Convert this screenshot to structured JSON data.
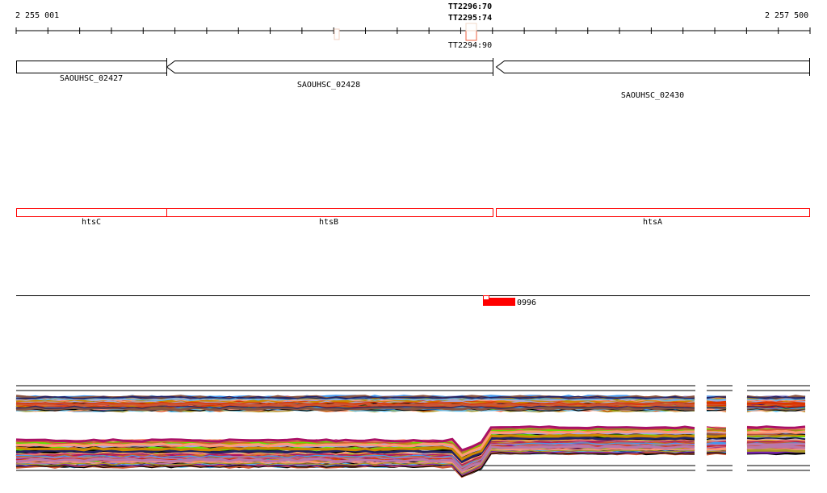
{
  "ruler": {
    "start_label": "2 255 001",
    "end_label": "2 257 500",
    "tick_count": 25
  },
  "markers": [
    {
      "label": "TT2295:74",
      "overlap_label": "TT2296:70",
      "color": "#f0d0c0"
    },
    {
      "label": "TT2294:90",
      "color": "#f06040"
    }
  ],
  "genes": [
    {
      "name": "SAOUHSC_02427",
      "strand": "none"
    },
    {
      "name": "SAOUHSC_02428",
      "strand": "-"
    },
    {
      "name": "SAOUHSC_02430",
      "strand": "-"
    }
  ],
  "operon_genes": [
    {
      "name": "htsC"
    },
    {
      "name": "htsB"
    },
    {
      "name": "htsA"
    }
  ],
  "feature_track": {
    "label": "0996",
    "color": "#ff0000"
  },
  "expression_palette": [
    "#000000",
    "#cc5533",
    "#99aa00",
    "#66dd00",
    "#aa1166",
    "#4499ee",
    "#bb77aa",
    "#ee6644",
    "#aa9922",
    "#cc8800",
    "#aaaadd",
    "#885544",
    "#dd3300",
    "#ff9977",
    "#7722aa",
    "#55bbee",
    "#222266"
  ]
}
